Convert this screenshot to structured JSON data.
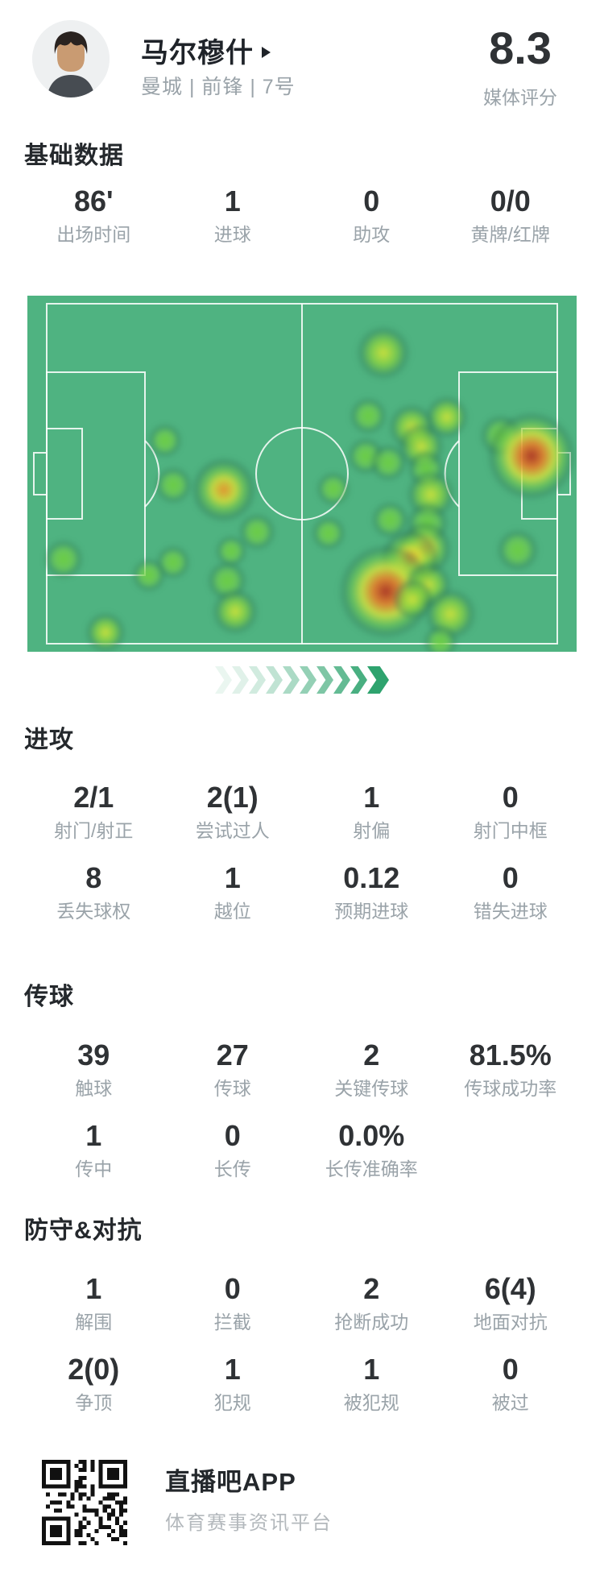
{
  "header": {
    "player_name": "马尔穆什",
    "player_meta": "曼城 | 前锋 | 7号",
    "rating": "8.3",
    "rating_label": "媒体评分"
  },
  "sections": [
    {
      "title": "基础数据",
      "rows": [
        [
          {
            "value": "86'",
            "label": "出场时间"
          },
          {
            "value": "1",
            "label": "进球"
          },
          {
            "value": "0",
            "label": "助攻"
          },
          {
            "value": "0/0",
            "label": "黄牌/红牌"
          }
        ]
      ]
    },
    {
      "title": "进攻",
      "rows": [
        [
          {
            "value": "2/1",
            "label": "射门/射正"
          },
          {
            "value": "2(1)",
            "label": "尝试过人"
          },
          {
            "value": "1",
            "label": "射偏"
          },
          {
            "value": "0",
            "label": "射门中框"
          }
        ],
        [
          {
            "value": "8",
            "label": "丢失球权"
          },
          {
            "value": "1",
            "label": "越位"
          },
          {
            "value": "0.12",
            "label": "预期进球"
          },
          {
            "value": "0",
            "label": "错失进球"
          }
        ]
      ]
    },
    {
      "title": "传球",
      "rows": [
        [
          {
            "value": "39",
            "label": "触球"
          },
          {
            "value": "27",
            "label": "传球"
          },
          {
            "value": "2",
            "label": "关键传球"
          },
          {
            "value": "81.5%",
            "label": "传球成功率"
          }
        ],
        [
          {
            "value": "1",
            "label": "传中"
          },
          {
            "value": "0",
            "label": "长传"
          },
          {
            "value": "0.0%",
            "label": "长传准确率"
          }
        ]
      ]
    },
    {
      "title": "防守&对抗",
      "rows": [
        [
          {
            "value": "1",
            "label": "解围"
          },
          {
            "value": "0",
            "label": "拦截"
          },
          {
            "value": "2",
            "label": "抢断成功"
          },
          {
            "value": "6(4)",
            "label": "地面对抗"
          }
        ],
        [
          {
            "value": "2(0)",
            "label": "争顶"
          },
          {
            "value": "1",
            "label": "犯规"
          },
          {
            "value": "1",
            "label": "被犯规"
          },
          {
            "value": "0",
            "label": "被过"
          }
        ]
      ]
    }
  ],
  "heatmap": {
    "pitch_color": "#4fb381",
    "line_color": "rgba(255,255,255,0.85)",
    "points": [
      [
        442,
        71,
        20,
        2
      ],
      [
        423,
        149,
        14,
        1
      ],
      [
        521,
        151,
        16,
        2
      ],
      [
        477,
        163,
        17,
        2
      ],
      [
        588,
        174,
        16,
        1
      ],
      [
        626,
        199,
        30,
        4
      ],
      [
        420,
        199,
        14,
        1
      ],
      [
        171,
        180,
        13,
        1
      ],
      [
        181,
        235,
        14,
        1
      ],
      [
        244,
        241,
        23,
        3
      ],
      [
        380,
        240,
        13,
        1
      ],
      [
        448,
        207,
        14,
        1
      ],
      [
        489,
        187,
        17,
        2
      ],
      [
        495,
        215,
        14,
        1
      ],
      [
        501,
        247,
        18,
        2
      ],
      [
        497,
        283,
        16,
        1
      ],
      [
        493,
        314,
        19,
        3
      ],
      [
        450,
        278,
        14,
        1
      ],
      [
        285,
        293,
        14,
        1
      ],
      [
        374,
        295,
        13,
        1
      ],
      [
        253,
        317,
        12,
        1
      ],
      [
        181,
        331,
        13,
        1
      ],
      [
        151,
        347,
        13,
        1
      ],
      [
        248,
        354,
        15,
        1
      ],
      [
        45,
        327,
        15,
        1
      ],
      [
        609,
        316,
        16,
        1
      ],
      [
        475,
        327,
        21,
        3
      ],
      [
        445,
        367,
        32,
        4
      ],
      [
        498,
        359,
        17,
        2
      ],
      [
        479,
        377,
        15,
        2
      ],
      [
        525,
        395,
        19,
        2
      ],
      [
        258,
        392,
        17,
        2
      ],
      [
        97,
        418,
        15,
        2
      ],
      [
        513,
        430,
        13,
        1
      ]
    ]
  },
  "momentum": {
    "chevron_count": 10,
    "color": "#2ea36e"
  },
  "footer": {
    "app_name": "直播吧APP",
    "app_tagline": "体育赛事资讯平台"
  }
}
